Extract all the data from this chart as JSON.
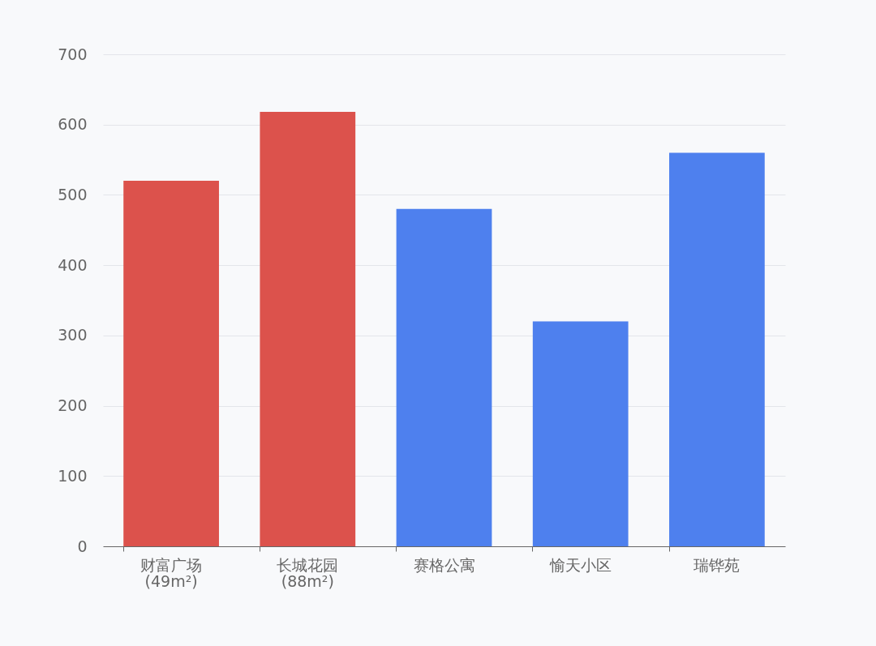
{
  "chart_data": {
    "type": "bar",
    "categories": [
      "财富广场\n(49m²)",
      "长城花园\n(88m²)",
      "赛格公寓",
      "愉天小区",
      "瑞铧苑"
    ],
    "values": [
      520,
      618,
      480,
      320,
      560
    ],
    "colors": [
      "#dc524c",
      "#dc524c",
      "#4e80ee",
      "#4e80ee",
      "#4e80ee"
    ],
    "ylim": [
      0,
      700
    ],
    "yticks": [
      0,
      100,
      200,
      300,
      400,
      500,
      600,
      700
    ],
    "grid": "y"
  }
}
